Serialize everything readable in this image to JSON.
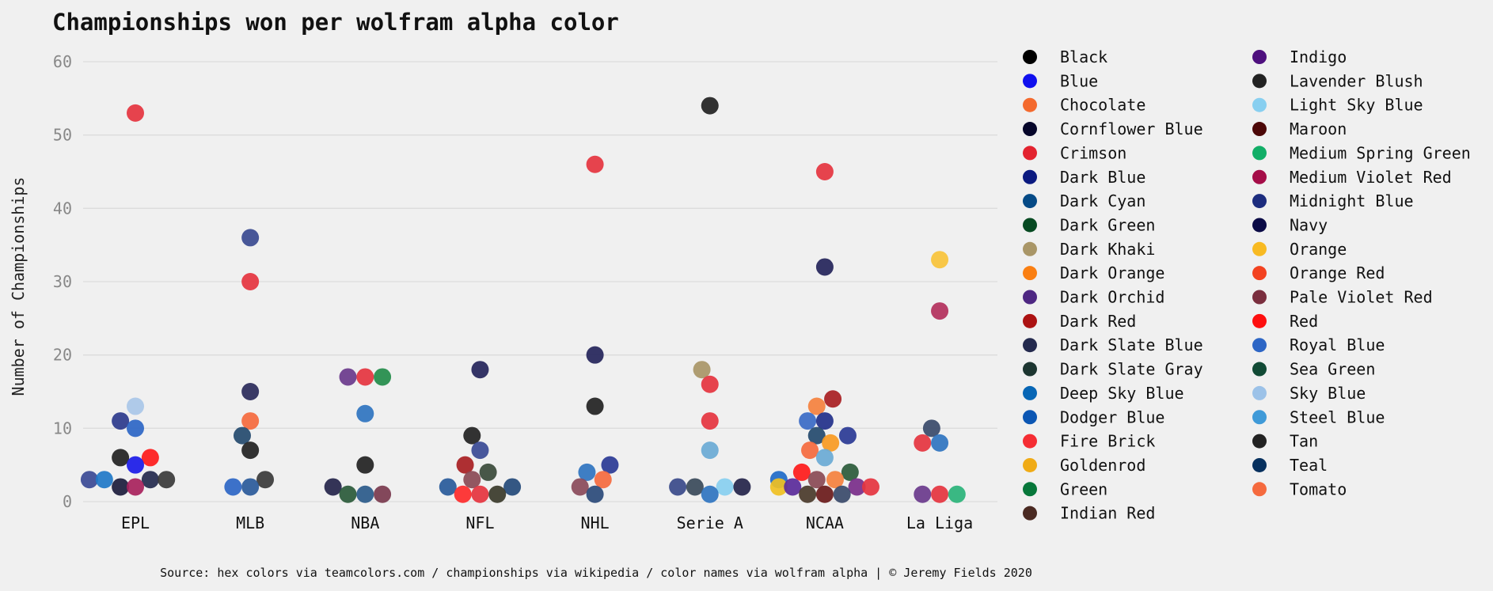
{
  "chart_data": {
    "type": "scatter",
    "title": "Championships won per wolfram alpha color",
    "ylabel": "Number of Championships",
    "xlabel": "",
    "ylim": [
      0,
      60
    ],
    "yticks": [
      0,
      10,
      20,
      30,
      40,
      50,
      60
    ],
    "grid": true,
    "legend_placement": "right, two columns",
    "categories": [
      "EPL",
      "MLB",
      "NBA",
      "NFL",
      "NHL",
      "Serie A",
      "NCAA",
      "La Liga"
    ],
    "source": "Source: hex colors via teamcolors.com / championships via wikipedia / color names via wolfram alpha | © Jeremy Fields 2020",
    "legend": [
      {
        "label": "Black",
        "color": "#000000"
      },
      {
        "label": "Blue",
        "color": "#1010ee"
      },
      {
        "label": "Chocolate",
        "color": "#f46a2e"
      },
      {
        "label": "Cornflower Blue",
        "color": "#06062a"
      },
      {
        "label": "Crimson",
        "color": "#e3232f"
      },
      {
        "label": "Dark Blue",
        "color": "#0b1a80"
      },
      {
        "label": "Dark Cyan",
        "color": "#054a86"
      },
      {
        "label": "Dark Green",
        "color": "#074a22"
      },
      {
        "label": "Dark Khaki",
        "color": "#a99667"
      },
      {
        "label": "Dark Orange",
        "color": "#fa7f12"
      },
      {
        "label": "Dark Orchid",
        "color": "#4e2782"
      },
      {
        "label": "Dark Red",
        "color": "#ac1212"
      },
      {
        "label": "Dark Slate Blue",
        "color": "#242a4e"
      },
      {
        "label": "Dark Slate Gray",
        "color": "#1c3530"
      },
      {
        "label": "Deep Sky Blue",
        "color": "#0766b5"
      },
      {
        "label": "Dodger Blue",
        "color": "#0b56b3"
      },
      {
        "label": "Fire Brick",
        "color": "#f52d33"
      },
      {
        "label": "Goldenrod",
        "color": "#f0ab16"
      },
      {
        "label": "Green",
        "color": "#07773a"
      },
      {
        "label": "Indian Red",
        "color": "#4a2a22"
      },
      {
        "label": "Indigo",
        "color": "#4e107e"
      },
      {
        "label": "Lavender Blush",
        "color": "#222222"
      },
      {
        "label": "Light Sky Blue",
        "color": "#88cff0"
      },
      {
        "label": "Maroon",
        "color": "#4c0707"
      },
      {
        "label": "Medium Spring Green",
        "color": "#12ae67"
      },
      {
        "label": "Medium Violet Red",
        "color": "#a50d48"
      },
      {
        "label": "Midnight Blue",
        "color": "#1c2c7e"
      },
      {
        "label": "Navy",
        "color": "#0b0b46"
      },
      {
        "label": "Orange",
        "color": "#f8ba22"
      },
      {
        "label": "Orange Red",
        "color": "#f34220"
      },
      {
        "label": "Pale Violet Red",
        "color": "#7a2e3e"
      },
      {
        "label": "Red",
        "color": "#fe0f0f"
      },
      {
        "label": "Royal Blue",
        "color": "#2d66c5"
      },
      {
        "label": "Sea Green",
        "color": "#114a35"
      },
      {
        "label": "Sky Blue",
        "color": "#9cc2e8"
      },
      {
        "label": "Steel Blue",
        "color": "#3f9ad8"
      },
      {
        "label": "Tan",
        "color": "#222222"
      },
      {
        "label": "Teal",
        "color": "#07305e"
      },
      {
        "label": "Tomato",
        "color": "#f56a3e"
      }
    ],
    "points": [
      {
        "category": "EPL",
        "jitter": 0,
        "y": 53,
        "color": "#e5343f"
      },
      {
        "category": "EPL",
        "jitter": 0,
        "y": 13,
        "color": "#a9c7e8"
      },
      {
        "category": "EPL",
        "jitter": -0.13,
        "y": 11,
        "color": "#2c3a8c"
      },
      {
        "category": "EPL",
        "jitter": 0,
        "y": 10,
        "color": "#2d66c5"
      },
      {
        "category": "EPL",
        "jitter": -0.13,
        "y": 6,
        "color": "#222222"
      },
      {
        "category": "EPL",
        "jitter": 0.13,
        "y": 6,
        "color": "#fe1a1a"
      },
      {
        "category": "EPL",
        "jitter": 0,
        "y": 5,
        "color": "#1a1ae8"
      },
      {
        "category": "EPL",
        "jitter": -0.4,
        "y": 3,
        "color": "#3b4a95"
      },
      {
        "category": "EPL",
        "jitter": -0.27,
        "y": 3,
        "color": "#1f78c8"
      },
      {
        "category": "EPL",
        "jitter": 0.13,
        "y": 3,
        "color": "#242a4e"
      },
      {
        "category": "EPL",
        "jitter": 0.27,
        "y": 3,
        "color": "#3a3a3a"
      },
      {
        "category": "EPL",
        "jitter": -0.13,
        "y": 2,
        "color": "#1c1c3c"
      },
      {
        "category": "EPL",
        "jitter": 0,
        "y": 2,
        "color": "#a8225c"
      },
      {
        "category": "MLB",
        "jitter": 0,
        "y": 36,
        "color": "#3a4a90"
      },
      {
        "category": "MLB",
        "jitter": 0,
        "y": 30,
        "color": "#e5343f"
      },
      {
        "category": "MLB",
        "jitter": 0,
        "y": 15,
        "color": "#2a2a5a"
      },
      {
        "category": "MLB",
        "jitter": 0,
        "y": 11,
        "color": "#f56a3e"
      },
      {
        "category": "MLB",
        "jitter": -0.07,
        "y": 9,
        "color": "#244a6e"
      },
      {
        "category": "MLB",
        "jitter": 0,
        "y": 7,
        "color": "#222222"
      },
      {
        "category": "MLB",
        "jitter": 0.13,
        "y": 3,
        "color": "#3a3a3a"
      },
      {
        "category": "MLB",
        "jitter": -0.15,
        "y": 2,
        "color": "#2d66c5"
      },
      {
        "category": "MLB",
        "jitter": 0,
        "y": 2,
        "color": "#2a5a9a"
      },
      {
        "category": "NBA",
        "jitter": -0.15,
        "y": 17,
        "color": "#6a3a8c"
      },
      {
        "category": "NBA",
        "jitter": 0,
        "y": 17,
        "color": "#e5343f"
      },
      {
        "category": "NBA",
        "jitter": 0.15,
        "y": 17,
        "color": "#238c4a"
      },
      {
        "category": "NBA",
        "jitter": 0,
        "y": 12,
        "color": "#2f74c0"
      },
      {
        "category": "NBA",
        "jitter": 0,
        "y": 5,
        "color": "#222222"
      },
      {
        "category": "NBA",
        "jitter": -0.28,
        "y": 2,
        "color": "#24244a"
      },
      {
        "category": "NBA",
        "jitter": -0.15,
        "y": 1,
        "color": "#2a5a3a"
      },
      {
        "category": "NBA",
        "jitter": 0,
        "y": 1,
        "color": "#2a5a8a"
      },
      {
        "category": "NBA",
        "jitter": 0.15,
        "y": 1,
        "color": "#7a3a4e"
      },
      {
        "category": "NFL",
        "jitter": 0,
        "y": 18,
        "color": "#24245a"
      },
      {
        "category": "NFL",
        "jitter": -0.07,
        "y": 9,
        "color": "#222222"
      },
      {
        "category": "NFL",
        "jitter": 0,
        "y": 7,
        "color": "#3a4a95"
      },
      {
        "category": "NFL",
        "jitter": -0.13,
        "y": 5,
        "color": "#a81e22"
      },
      {
        "category": "NFL",
        "jitter": 0.07,
        "y": 4,
        "color": "#3a4a3a"
      },
      {
        "category": "NFL",
        "jitter": -0.07,
        "y": 3,
        "color": "#8a4a55"
      },
      {
        "category": "NFL",
        "jitter": -0.28,
        "y": 2,
        "color": "#285a9a"
      },
      {
        "category": "NFL",
        "jitter": 0.28,
        "y": 2,
        "color": "#244a7a"
      },
      {
        "category": "NFL",
        "jitter": -0.15,
        "y": 1,
        "color": "#fe2a2a"
      },
      {
        "category": "NFL",
        "jitter": 0,
        "y": 1,
        "color": "#e5343f"
      },
      {
        "category": "NFL",
        "jitter": 0.15,
        "y": 1,
        "color": "#3a3a2a"
      },
      {
        "category": "NHL",
        "jitter": 0,
        "y": 46,
        "color": "#e5343f"
      },
      {
        "category": "NHL",
        "jitter": 0,
        "y": 20,
        "color": "#24245a"
      },
      {
        "category": "NHL",
        "jitter": 0,
        "y": 13,
        "color": "#222222"
      },
      {
        "category": "NHL",
        "jitter": 0.13,
        "y": 5,
        "color": "#2a3a95"
      },
      {
        "category": "NHL",
        "jitter": -0.07,
        "y": 4,
        "color": "#2f74c0"
      },
      {
        "category": "NHL",
        "jitter": 0.07,
        "y": 3,
        "color": "#f56a3e"
      },
      {
        "category": "NHL",
        "jitter": -0.13,
        "y": 2,
        "color": "#8a4a5a"
      },
      {
        "category": "NHL",
        "jitter": 0,
        "y": 1,
        "color": "#2a4a7a"
      },
      {
        "category": "Serie A",
        "jitter": 0,
        "y": 54,
        "color": "#222222"
      },
      {
        "category": "Serie A",
        "jitter": -0.07,
        "y": 18,
        "color": "#a99667"
      },
      {
        "category": "Serie A",
        "jitter": 0,
        "y": 16,
        "color": "#e5343f"
      },
      {
        "category": "Serie A",
        "jitter": 0,
        "y": 11,
        "color": "#e5343f"
      },
      {
        "category": "Serie A",
        "jitter": 0,
        "y": 7,
        "color": "#6aaad5"
      },
      {
        "category": "Serie A",
        "jitter": -0.28,
        "y": 2,
        "color": "#3a4a8a"
      },
      {
        "category": "Serie A",
        "jitter": -0.13,
        "y": 2,
        "color": "#3a4a5a"
      },
      {
        "category": "Serie A",
        "jitter": 0.13,
        "y": 2,
        "color": "#88cff0"
      },
      {
        "category": "Serie A",
        "jitter": 0.28,
        "y": 2,
        "color": "#24244a"
      },
      {
        "category": "Serie A",
        "jitter": 0,
        "y": 1,
        "color": "#2f74c0"
      },
      {
        "category": "NCAA",
        "jitter": 0,
        "y": 45,
        "color": "#e5343f"
      },
      {
        "category": "NCAA",
        "jitter": 0,
        "y": 32,
        "color": "#24245a"
      },
      {
        "category": "NCAA",
        "jitter": 0.07,
        "y": 14,
        "color": "#a81e22"
      },
      {
        "category": "NCAA",
        "jitter": -0.07,
        "y": 13,
        "color": "#f5813e"
      },
      {
        "category": "NCAA",
        "jitter": -0.15,
        "y": 11,
        "color": "#3a6ac5"
      },
      {
        "category": "NCAA",
        "jitter": 0,
        "y": 11,
        "color": "#22308a"
      },
      {
        "category": "NCAA",
        "jitter": -0.07,
        "y": 9,
        "color": "#244a6e"
      },
      {
        "category": "NCAA",
        "jitter": 0.2,
        "y": 9,
        "color": "#2a3a95"
      },
      {
        "category": "NCAA",
        "jitter": 0.05,
        "y": 8,
        "color": "#f89a22"
      },
      {
        "category": "NCAA",
        "jitter": -0.13,
        "y": 7,
        "color": "#f56a3e"
      },
      {
        "category": "NCAA",
        "jitter": 0,
        "y": 6,
        "color": "#6aaad5"
      },
      {
        "category": "NCAA",
        "jitter": 0.22,
        "y": 4,
        "color": "#2a5a3a"
      },
      {
        "category": "NCAA",
        "jitter": -0.2,
        "y": 4,
        "color": "#fe1a1a"
      },
      {
        "category": "NCAA",
        "jitter": -0.4,
        "y": 3,
        "color": "#1f6ac8"
      },
      {
        "category": "NCAA",
        "jitter": -0.07,
        "y": 3,
        "color": "#8a4a55"
      },
      {
        "category": "NCAA",
        "jitter": 0.09,
        "y": 3,
        "color": "#f5813e"
      },
      {
        "category": "NCAA",
        "jitter": -0.4,
        "y": 2,
        "color": "#f0c022"
      },
      {
        "category": "NCAA",
        "jitter": -0.28,
        "y": 2,
        "color": "#5a2a9a"
      },
      {
        "category": "NCAA",
        "jitter": 0.28,
        "y": 2,
        "color": "#7a2e8a"
      },
      {
        "category": "NCAA",
        "jitter": 0.4,
        "y": 2,
        "color": "#e5343f"
      },
      {
        "category": "NCAA",
        "jitter": -0.15,
        "y": 1,
        "color": "#4a3a2a"
      },
      {
        "category": "NCAA",
        "jitter": 0,
        "y": 1,
        "color": "#6a1a1a"
      },
      {
        "category": "NCAA",
        "jitter": 0.15,
        "y": 1,
        "color": "#3a4a6a"
      },
      {
        "category": "La Liga",
        "jitter": 0,
        "y": 33,
        "color": "#f8c33a"
      },
      {
        "category": "La Liga",
        "jitter": 0,
        "y": 26,
        "color": "#b3305c"
      },
      {
        "category": "La Liga",
        "jitter": -0.07,
        "y": 10,
        "color": "#3a4a6a"
      },
      {
        "category": "La Liga",
        "jitter": -0.15,
        "y": 8,
        "color": "#e5343f"
      },
      {
        "category": "La Liga",
        "jitter": 0,
        "y": 8,
        "color": "#2f74c0"
      },
      {
        "category": "La Liga",
        "jitter": -0.15,
        "y": 1,
        "color": "#6a3a8c"
      },
      {
        "category": "La Liga",
        "jitter": 0,
        "y": 1,
        "color": "#e5343f"
      },
      {
        "category": "La Liga",
        "jitter": 0.15,
        "y": 1,
        "color": "#2ab37a"
      }
    ]
  }
}
